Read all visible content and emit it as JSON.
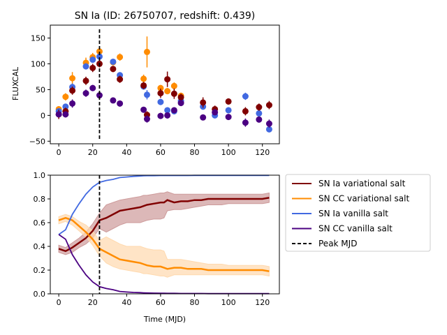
{
  "chart_data": [
    {
      "type": "scatter",
      "title": "SN Ia (ID: 26750707, redshift: 0.439)",
      "xlabel": "",
      "ylabel": "FLUXCAL",
      "xlim": [
        -5,
        130
      ],
      "ylim": [
        -55,
        175
      ],
      "xticks": [
        "0",
        "20",
        "40",
        "60",
        "80",
        "100",
        "120"
      ],
      "yticks": [
        "−50",
        "0",
        "50",
        "100",
        "150"
      ],
      "peak_mjd": 24,
      "series": [
        {
          "color": "#ff8c00",
          "x": [
            0,
            4,
            8,
            16,
            20,
            24,
            32,
            36,
            50,
            52,
            60,
            64,
            68,
            72
          ],
          "y": [
            12,
            36,
            72,
            102,
            113,
            124,
            103,
            113,
            71,
            123,
            53,
            47,
            57,
            38
          ],
          "err": [
            6,
            7,
            12,
            10,
            8,
            7,
            6,
            7,
            8,
            30,
            6,
            6,
            7,
            6
          ]
        },
        {
          "color": "#4169e1",
          "x": [
            0,
            4,
            8,
            16,
            20,
            24,
            32,
            36,
            50,
            52,
            60,
            64,
            68,
            72,
            85,
            92,
            100,
            110,
            118,
            124
          ],
          "y": [
            8,
            17,
            55,
            95,
            108,
            114,
            104,
            78,
            56,
            40,
            26,
            10,
            8,
            28,
            17,
            0,
            10,
            37,
            4,
            -27
          ],
          "err": [
            5,
            5,
            7,
            6,
            6,
            6,
            5,
            6,
            6,
            9,
            6,
            6,
            6,
            6,
            6,
            5,
            6,
            7,
            6,
            6
          ]
        },
        {
          "color": "#800000",
          "x": [
            0,
            4,
            8,
            16,
            20,
            24,
            32,
            36,
            50,
            52,
            60,
            64,
            68,
            72,
            85,
            92,
            100,
            110,
            118,
            124
          ],
          "y": [
            2,
            8,
            48,
            67,
            92,
            100,
            90,
            70,
            58,
            1,
            43,
            70,
            42,
            35,
            25,
            12,
            27,
            8,
            16,
            20
          ],
          "err": [
            9,
            7,
            8,
            8,
            8,
            7,
            6,
            7,
            7,
            7,
            9,
            15,
            10,
            7,
            10,
            7,
            6,
            8,
            7,
            8
          ]
        },
        {
          "color": "#4b0082",
          "x": [
            0,
            4,
            8,
            16,
            20,
            24,
            32,
            36,
            50,
            52,
            60,
            64,
            68,
            72,
            85,
            92,
            100,
            110,
            118,
            124
          ],
          "y": [
            2,
            2,
            23,
            43,
            53,
            39,
            29,
            23,
            11,
            -7,
            -1,
            0,
            10,
            24,
            -4,
            6,
            -3,
            -14,
            -8,
            -16
          ],
          "err": [
            5,
            6,
            8,
            7,
            6,
            6,
            5,
            6,
            5,
            7,
            6,
            6,
            6,
            6,
            5,
            5,
            5,
            8,
            6,
            8
          ]
        }
      ]
    },
    {
      "type": "line",
      "title": "",
      "xlabel": "Time (MJD)",
      "ylabel": "",
      "xlim": [
        -5,
        130
      ],
      "ylim": [
        0,
        1
      ],
      "xticks": [
        "0",
        "20",
        "40",
        "60",
        "80",
        "100",
        "120"
      ],
      "yticks": [
        "0.0",
        "0.2",
        "0.4",
        "0.6",
        "0.8",
        "1.0"
      ],
      "peak_mjd": 24,
      "x": [
        0,
        4,
        8,
        12,
        16,
        20,
        24,
        28,
        32,
        36,
        40,
        44,
        48,
        50,
        52,
        56,
        60,
        62,
        64,
        68,
        72,
        76,
        80,
        84,
        88,
        92,
        96,
        100,
        104,
        108,
        112,
        116,
        120,
        124
      ],
      "series": [
        {
          "name": "SN Ia variational salt",
          "color": "#800000",
          "band": "#cd9a9a",
          "y": [
            0.38,
            0.36,
            0.39,
            0.43,
            0.47,
            0.53,
            0.62,
            0.64,
            0.67,
            0.7,
            0.71,
            0.72,
            0.73,
            0.74,
            0.75,
            0.76,
            0.77,
            0.77,
            0.79,
            0.77,
            0.78,
            0.78,
            0.79,
            0.79,
            0.8,
            0.8,
            0.8,
            0.8,
            0.8,
            0.8,
            0.8,
            0.8,
            0.8,
            0.81
          ],
          "lo": [
            0.35,
            0.33,
            0.35,
            0.39,
            0.42,
            0.47,
            0.55,
            0.52,
            0.55,
            0.58,
            0.6,
            0.6,
            0.6,
            0.61,
            0.62,
            0.63,
            0.63,
            0.64,
            0.7,
            0.71,
            0.71,
            0.72,
            0.73,
            0.74,
            0.75,
            0.75,
            0.75,
            0.76,
            0.76,
            0.76,
            0.76,
            0.76,
            0.76,
            0.77
          ],
          "hi": [
            0.41,
            0.39,
            0.43,
            0.47,
            0.52,
            0.59,
            0.68,
            0.75,
            0.77,
            0.79,
            0.8,
            0.81,
            0.82,
            0.83,
            0.83,
            0.84,
            0.85,
            0.85,
            0.86,
            0.84,
            0.84,
            0.84,
            0.84,
            0.84,
            0.84,
            0.84,
            0.84,
            0.84,
            0.84,
            0.84,
            0.84,
            0.84,
            0.84,
            0.85
          ]
        },
        {
          "name": "SN CC variational salt",
          "color": "#ff8c00",
          "band": "#ffd9ae",
          "y": [
            0.62,
            0.64,
            0.62,
            0.57,
            0.52,
            0.46,
            0.38,
            0.35,
            0.32,
            0.29,
            0.28,
            0.27,
            0.26,
            0.25,
            0.24,
            0.23,
            0.23,
            0.22,
            0.21,
            0.22,
            0.22,
            0.21,
            0.21,
            0.21,
            0.2,
            0.2,
            0.2,
            0.2,
            0.2,
            0.2,
            0.2,
            0.2,
            0.2,
            0.19
          ],
          "lo": [
            0.59,
            0.61,
            0.58,
            0.53,
            0.48,
            0.41,
            0.32,
            0.26,
            0.23,
            0.21,
            0.2,
            0.19,
            0.18,
            0.17,
            0.17,
            0.16,
            0.15,
            0.15,
            0.14,
            0.16,
            0.16,
            0.16,
            0.16,
            0.16,
            0.16,
            0.16,
            0.16,
            0.16,
            0.16,
            0.16,
            0.16,
            0.16,
            0.16,
            0.15
          ],
          "hi": [
            0.65,
            0.67,
            0.65,
            0.61,
            0.58,
            0.53,
            0.45,
            0.48,
            0.45,
            0.42,
            0.4,
            0.4,
            0.4,
            0.39,
            0.38,
            0.37,
            0.37,
            0.36,
            0.29,
            0.29,
            0.29,
            0.28,
            0.27,
            0.26,
            0.25,
            0.25,
            0.25,
            0.24,
            0.24,
            0.24,
            0.24,
            0.24,
            0.24,
            0.23
          ]
        },
        {
          "name": "SN Ia vanilla salt",
          "color": "#4169e1",
          "y": [
            0.5,
            0.54,
            0.67,
            0.76,
            0.84,
            0.9,
            0.94,
            0.955,
            0.965,
            0.98,
            0.985,
            0.99,
            0.993,
            0.995,
            0.996,
            0.996,
            0.997,
            0.997,
            0.997,
            0.997,
            0.997,
            0.997,
            0.998,
            0.998,
            0.998,
            0.998,
            0.998,
            0.998,
            0.998,
            0.998,
            0.998,
            0.998,
            0.998,
            0.998
          ]
        },
        {
          "name": "SN CC vanilla salt",
          "color": "#4b0082",
          "y": [
            0.5,
            0.46,
            0.33,
            0.24,
            0.16,
            0.1,
            0.06,
            0.045,
            0.035,
            0.02,
            0.015,
            0.012,
            0.01,
            0.008,
            0.007,
            0.006,
            0.005,
            0.005,
            0.004,
            0.004,
            0.003,
            0.003,
            0.003,
            0.003,
            0.002,
            0.002,
            0.002,
            0.002,
            0.002,
            0.002,
            0.002,
            0.002,
            0.002,
            0.002
          ]
        }
      ],
      "peak_label": "Peak MJD"
    }
  ]
}
